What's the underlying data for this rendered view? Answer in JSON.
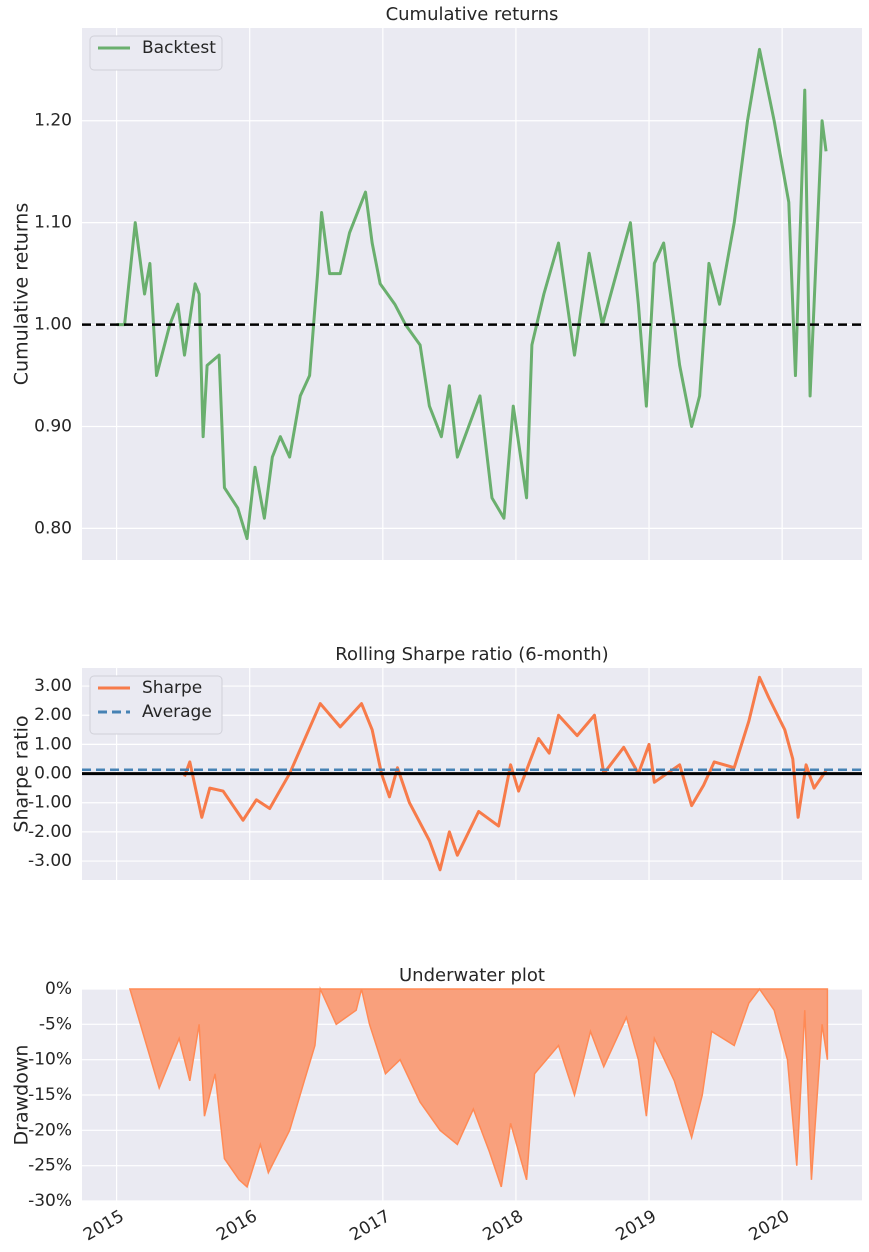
{
  "chart_data": [
    {
      "type": "line",
      "title": "Cumulative returns",
      "ylabel": "Cumulative returns",
      "x": [
        2015.0,
        2015.06,
        2015.1,
        2015.14,
        2015.21,
        2015.25,
        2015.3,
        2015.4,
        2015.46,
        2015.51,
        2015.59,
        2015.62,
        2015.65,
        2015.68,
        2015.77,
        2015.81,
        2015.91,
        2015.98,
        2016.04,
        2016.11,
        2016.17,
        2016.23,
        2016.3,
        2016.38,
        2016.45,
        2016.51,
        2016.54,
        2016.6,
        2016.68,
        2016.75,
        2016.87,
        2016.92,
        2016.98,
        2017.09,
        2017.17,
        2017.28,
        2017.35,
        2017.44,
        2017.5,
        2017.56,
        2017.73,
        2017.82,
        2017.91,
        2017.98,
        2018.08,
        2018.12,
        2018.21,
        2018.32,
        2018.44,
        2018.55,
        2018.65,
        2018.86,
        2018.92,
        2018.98,
        2019.04,
        2019.11,
        2019.23,
        2019.32,
        2019.38,
        2019.45,
        2019.53,
        2019.64,
        2019.74,
        2019.83,
        2019.94,
        2020.05,
        2020.1,
        2020.17,
        2020.21,
        2020.24,
        2020.3,
        2020.33
      ],
      "series": [
        {
          "name": "Backtest",
          "color": "#6aaf6e",
          "values": [
            1.0,
            1.0,
            1.05,
            1.1,
            1.03,
            1.06,
            0.95,
            1.0,
            1.02,
            0.97,
            1.04,
            1.03,
            0.89,
            0.96,
            0.97,
            0.84,
            0.82,
            0.79,
            0.86,
            0.81,
            0.87,
            0.89,
            0.87,
            0.93,
            0.95,
            1.05,
            1.11,
            1.05,
            1.05,
            1.09,
            1.13,
            1.08,
            1.04,
            1.02,
            1.0,
            0.98,
            0.92,
            0.89,
            0.94,
            0.87,
            0.93,
            0.83,
            0.81,
            0.92,
            0.83,
            0.98,
            1.03,
            1.08,
            0.97,
            1.07,
            1.0,
            1.1,
            1.02,
            0.92,
            1.06,
            1.08,
            0.96,
            0.9,
            0.93,
            1.06,
            1.02,
            1.1,
            1.2,
            1.27,
            1.2,
            1.12,
            0.95,
            1.23,
            0.93,
            1.02,
            1.2,
            1.17
          ]
        }
      ],
      "hlines": [
        {
          "value": 1,
          "color": "#000000",
          "style": "dashed"
        }
      ],
      "xlim": [
        2014.74,
        2020.6
      ],
      "xticks": [
        2015,
        2016,
        2017,
        2018,
        2019,
        2020
      ],
      "xtick_labels": false,
      "ylim": [
        0.769,
        1.291
      ],
      "yticks": [
        {
          "value": 0.8,
          "label": "0.80"
        },
        {
          "value": 0.9,
          "label": "0.90"
        },
        {
          "value": 1.0,
          "label": "1.00"
        },
        {
          "value": 1.1,
          "label": "1.10"
        },
        {
          "value": 1.2,
          "label": "1.20"
        }
      ],
      "grid": true,
      "legend": "upper left"
    },
    {
      "type": "line",
      "title": "Rolling Sharpe ratio (6-month)",
      "ylabel": "Sharpe ratio",
      "x": [
        2015.51,
        2015.55,
        2015.64,
        2015.7,
        2015.8,
        2015.95,
        2016.05,
        2016.15,
        2016.3,
        2016.53,
        2016.68,
        2016.84,
        2016.92,
        2016.99,
        2017.05,
        2017.11,
        2017.2,
        2017.35,
        2017.43,
        2017.5,
        2017.56,
        2017.72,
        2017.87,
        2017.96,
        2018.02,
        2018.17,
        2018.25,
        2018.32,
        2018.46,
        2018.59,
        2018.66,
        2018.81,
        2018.92,
        2019.0,
        2019.04,
        2019.23,
        2019.32,
        2019.41,
        2019.49,
        2019.64,
        2019.75,
        2019.83,
        2019.9,
        2020.02,
        2020.08,
        2020.12,
        2020.18,
        2020.24,
        2020.33
      ],
      "series": [
        {
          "name": "Sharpe",
          "color": "#f77b4a",
          "values": [
            -0.1,
            0.4,
            -1.5,
            -0.5,
            -0.6,
            -1.6,
            -0.9,
            -1.2,
            0.0,
            2.4,
            1.6,
            2.4,
            1.5,
            0.0,
            -0.8,
            0.2,
            -1.0,
            -2.3,
            -3.3,
            -2.0,
            -2.8,
            -1.3,
            -1.8,
            0.3,
            -0.6,
            1.2,
            0.7,
            2.0,
            1.3,
            2.0,
            0.0,
            0.9,
            0.0,
            1.0,
            -0.3,
            0.3,
            -1.1,
            -0.4,
            0.4,
            0.2,
            1.8,
            3.3,
            2.6,
            1.5,
            0.5,
            -1.5,
            0.3,
            -0.5,
            0.1
          ]
        }
      ],
      "hlines": [
        {
          "name": "Average",
          "value": 0.13,
          "color": "#4682b4",
          "style": "dashed"
        },
        {
          "value": 0,
          "color": "#000000",
          "style": "solid"
        }
      ],
      "xlim": [
        2014.74,
        2020.6
      ],
      "xticks": [
        2015,
        2016,
        2017,
        2018,
        2019,
        2020
      ],
      "xtick_labels": false,
      "ylim": [
        -3.65,
        3.62
      ],
      "yticks": [
        {
          "value": -3,
          "label": "-3.00"
        },
        {
          "value": -2,
          "label": "-2.00"
        },
        {
          "value": -1,
          "label": "-1.00"
        },
        {
          "value": 0,
          "label": "0.00"
        },
        {
          "value": 1,
          "label": "1.00"
        },
        {
          "value": 2,
          "label": "2.00"
        },
        {
          "value": 3,
          "label": "3.00"
        }
      ],
      "grid": true,
      "legend": "upper left"
    },
    {
      "type": "area",
      "title": "Underwater plot",
      "ylabel": "Drawdown",
      "x": [
        2015.1,
        2015.32,
        2015.47,
        2015.55,
        2015.62,
        2015.66,
        2015.74,
        2015.81,
        2015.92,
        2015.98,
        2016.08,
        2016.14,
        2016.3,
        2016.41,
        2016.49,
        2016.53,
        2016.65,
        2016.8,
        2016.84,
        2016.9,
        2017.02,
        2017.13,
        2017.28,
        2017.43,
        2017.56,
        2017.68,
        2017.8,
        2017.89,
        2017.96,
        2018.08,
        2018.14,
        2018.32,
        2018.44,
        2018.56,
        2018.66,
        2018.83,
        2018.92,
        2018.98,
        2019.04,
        2019.19,
        2019.32,
        2019.4,
        2019.47,
        2019.64,
        2019.75,
        2019.83,
        2019.94,
        2020.04,
        2020.11,
        2020.17,
        2020.22,
        2020.3,
        2020.34
      ],
      "series": [
        {
          "color": "#f9a07c",
          "line_color": "#ff8a55",
          "values": [
            0,
            -14,
            -7,
            -13,
            -5,
            -18,
            -12,
            -24,
            -27,
            -28,
            -22,
            -26,
            -20,
            -13,
            -8,
            0,
            -5,
            -3,
            0,
            -5,
            -12,
            -10,
            -16,
            -20,
            -22,
            -17,
            -23,
            -28,
            -19,
            -27,
            -12,
            -8,
            -15,
            -6,
            -11,
            -4,
            -10,
            -18,
            -7,
            -13,
            -21,
            -15,
            -6,
            -8,
            -2,
            0,
            -3,
            -10,
            -25,
            -3,
            -27,
            -5,
            -10
          ]
        }
      ],
      "xlim": [
        2014.74,
        2020.6
      ],
      "xticks": [
        2015,
        2016,
        2017,
        2018,
        2019,
        2020
      ],
      "xtick_labels": true,
      "ylim": [
        -30,
        0
      ],
      "yticks": [
        {
          "value": -30,
          "label": "-30%"
        },
        {
          "value": -25,
          "label": "-25%"
        },
        {
          "value": -20,
          "label": "-20%"
        },
        {
          "value": -15,
          "label": "-15%"
        },
        {
          "value": -10,
          "label": "-10%"
        },
        {
          "value": -5,
          "label": "-5%"
        },
        {
          "value": 0,
          "label": "0%"
        }
      ],
      "grid": true
    }
  ]
}
